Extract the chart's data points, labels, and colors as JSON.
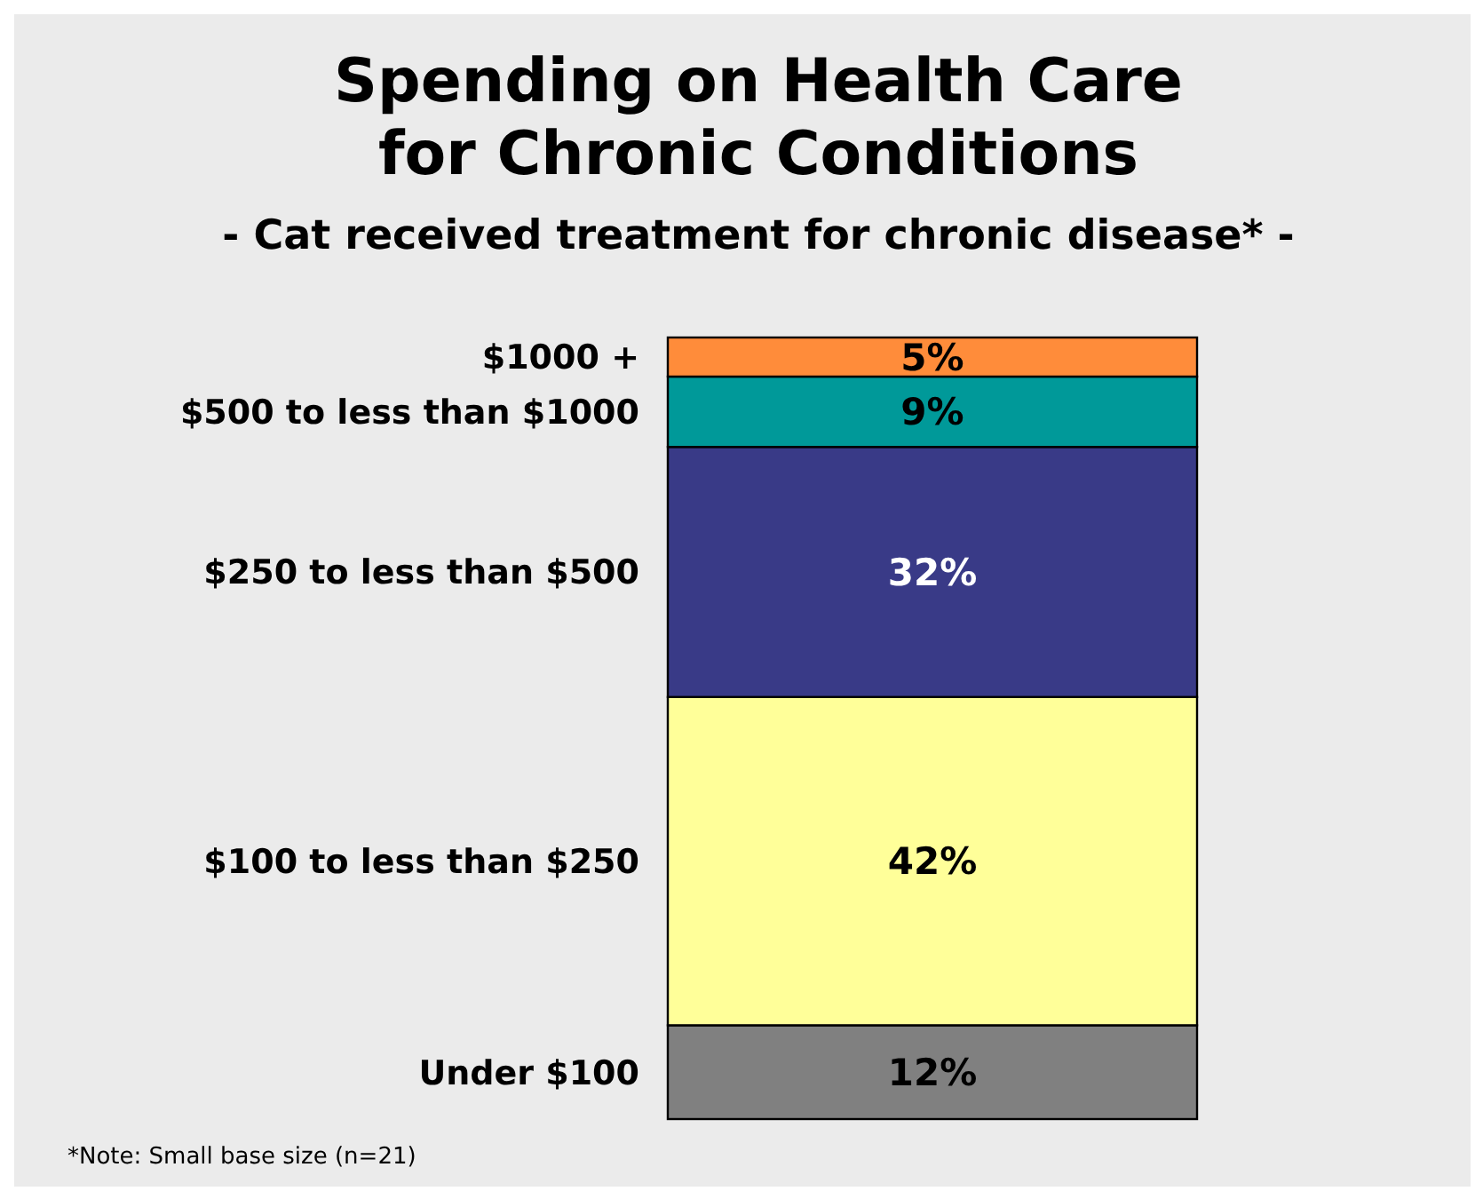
{
  "chart_data": {
    "type": "bar",
    "title": "Spending on Health Care\nfor Chronic Conditions",
    "subtitle": "- Cat received treatment for chronic disease* -",
    "categories": [
      null
    ],
    "stacked": true,
    "ylim": [
      0,
      100
    ],
    "series": [
      {
        "name": "Under $100",
        "color": "#808080",
        "values": [
          12
        ],
        "value_labels": [
          "12%"
        ]
      },
      {
        "name": "$100 to less than $250",
        "color": "#ffff99",
        "values": [
          42
        ],
        "value_labels": [
          "42%"
        ]
      },
      {
        "name": "$250 to less than $500",
        "color": "#393a87",
        "values": [
          32
        ],
        "value_labels": [
          "32%"
        ]
      },
      {
        "name": "$500 to less than $1000",
        "color": "#009999",
        "values": [
          9
        ],
        "value_labels": [
          "9%"
        ]
      },
      {
        "name": "$1000 +",
        "color": "#ff8c3a",
        "values": [
          5
        ],
        "value_labels": [
          "5%"
        ]
      }
    ],
    "annotations": [
      "*Note: Small base size (n=21)"
    ]
  }
}
